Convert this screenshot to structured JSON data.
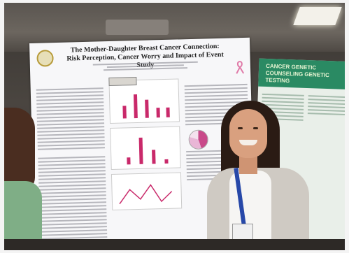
{
  "poster": {
    "title_line1": "The Mother-Daughter Breast Cancer Connection:",
    "title_line2": "Risk Perception, Cancer Worry and Impact of Event Study"
  },
  "poster2": {
    "title": "CANCER GENETIC COUNSELING GENETIC TESTING"
  },
  "colors": {
    "poster_bg": "#f7f7f9",
    "chart_bars": "#c9296a",
    "poster2_header": "#2a8a63",
    "lanyard": "#2748a8"
  }
}
